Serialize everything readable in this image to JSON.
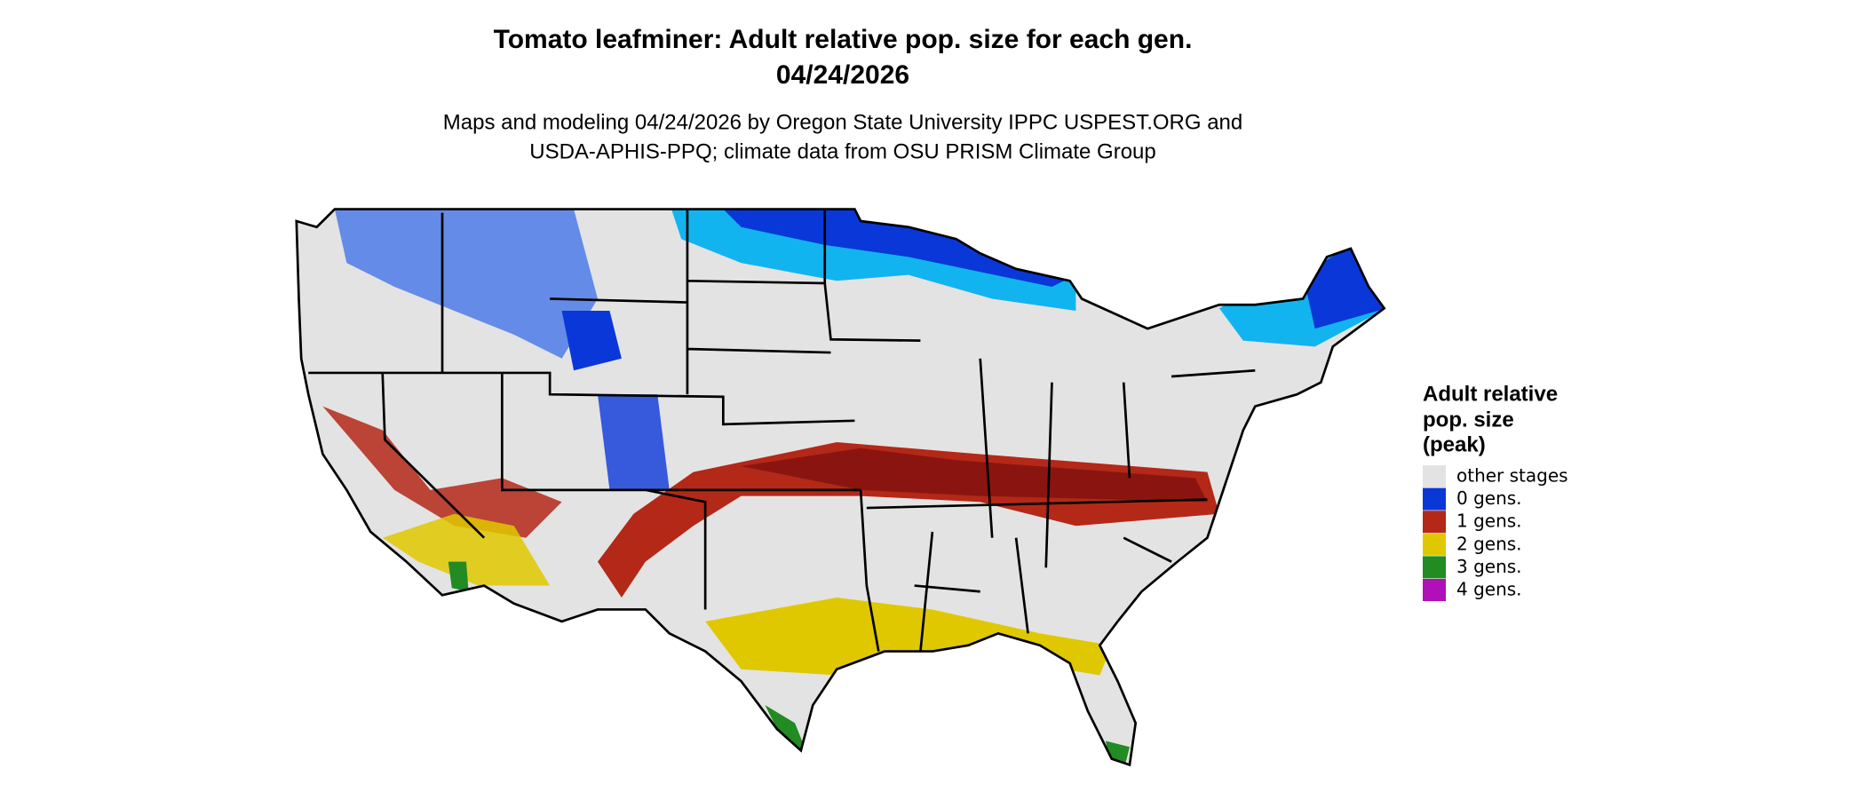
{
  "header": {
    "title": "Tomato leafminer: Adult relative pop. size for each gen.",
    "date": "04/24/2026",
    "subtitle_lines": [
      "Maps and modeling 04/24/2026 by Oregon State University IPPC USPEST.ORG and",
      "USDA-APHIS-PPQ; climate data from OSU PRISM Climate Group"
    ]
  },
  "legend": {
    "title_lines": [
      "Adult relative",
      "pop. size",
      "(peak)"
    ],
    "items": [
      {
        "label": "other stages",
        "color": "#e3e3e3"
      },
      {
        "label": "0 gens.",
        "color": "#0a37d8"
      },
      {
        "label": "1 gens.",
        "color": "#b42818"
      },
      {
        "label": "2 gens.",
        "color": "#e0c800"
      },
      {
        "label": "3 gens.",
        "color": "#228b22"
      },
      {
        "label": "4 gens.",
        "color": "#b010b8"
      }
    ]
  }
}
